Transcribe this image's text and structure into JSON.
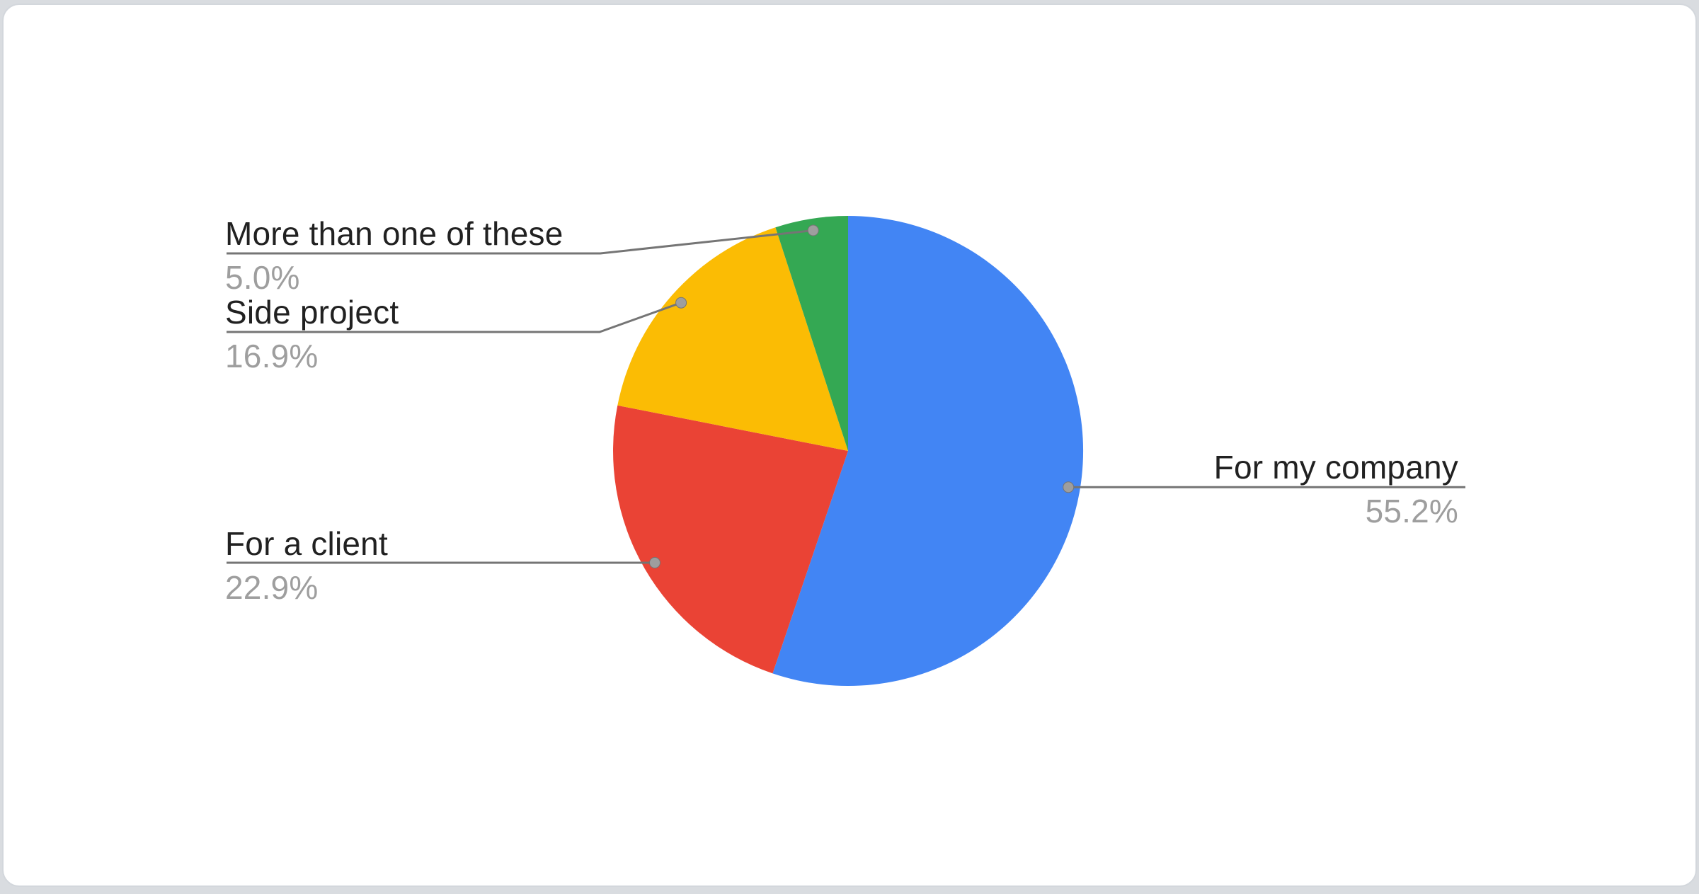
{
  "chart_data": {
    "type": "pie",
    "title": "",
    "legend": "none",
    "labeling": "outside-with-leader-lines",
    "start_position": "12-o-clock",
    "direction": "clockwise",
    "labels": [
      "For my company",
      "For a client",
      "Side project",
      "More than one of these"
    ],
    "values": [
      55.2,
      22.9,
      16.9,
      5.0
    ],
    "value_labels": [
      "55.2%",
      "22.9%",
      "16.9%",
      "5.0%"
    ],
    "colors": [
      "#4285f4",
      "#ea4335",
      "#fbbc04",
      "#34a853"
    ],
    "label_color": "#212121",
    "value_label_color": "#9e9e9e",
    "leader_line_color": "#757575",
    "leader_dot_color": "#9e9e9e"
  }
}
